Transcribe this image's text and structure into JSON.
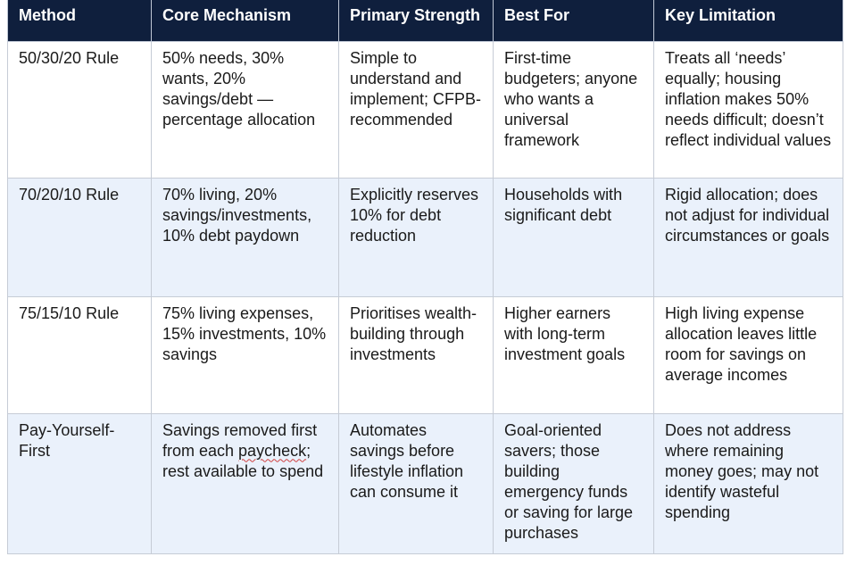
{
  "table": {
    "headers": [
      "Method",
      "Core Mechanism",
      "Primary Strength",
      "Best For",
      "Key Limitation"
    ],
    "rows": [
      {
        "method": "50/30/20 Rule",
        "mechanism": "50% needs, 30% wants, 20% savings/debt — percentage allocation",
        "strength": "Simple to understand and implement; CFPB-recommended",
        "best_for": "First-time budgeters; anyone who wants a universal framework",
        "limitation": "Treats all ‘needs’ equally; housing inflation makes 50% needs difficult; doesn’t reflect individual values"
      },
      {
        "method": "70/20/10 Rule",
        "mechanism": "70% living, 20% savings/investments, 10% debt paydown",
        "strength": "Explicitly reserves 10% for debt reduction",
        "best_for": "Households with significant debt",
        "limitation": "Rigid allocation; does not adjust for individual circumstances or goals"
      },
      {
        "method": "75/15/10 Rule",
        "mechanism": "75% living expenses, 15% investments, 10% savings",
        "strength": "Prioritises wealth-building through investments",
        "best_for": "Higher earners with long-term investment goals",
        "limitation": "High living expense allocation leaves little room for savings on average incomes"
      },
      {
        "method": "Pay-Yourself-First",
        "mechanism_before": "Savings removed first from each ",
        "mechanism_flagged_word": "paycheck",
        "mechanism_after": "; rest available to spend",
        "strength": "Automates savings before lifestyle inflation can consume it",
        "best_for": "Goal-oriented savers; those building emergency funds or saving for large purchases",
        "limitation": "Does not address where remaining money goes; may not identify wasteful spending"
      }
    ]
  }
}
